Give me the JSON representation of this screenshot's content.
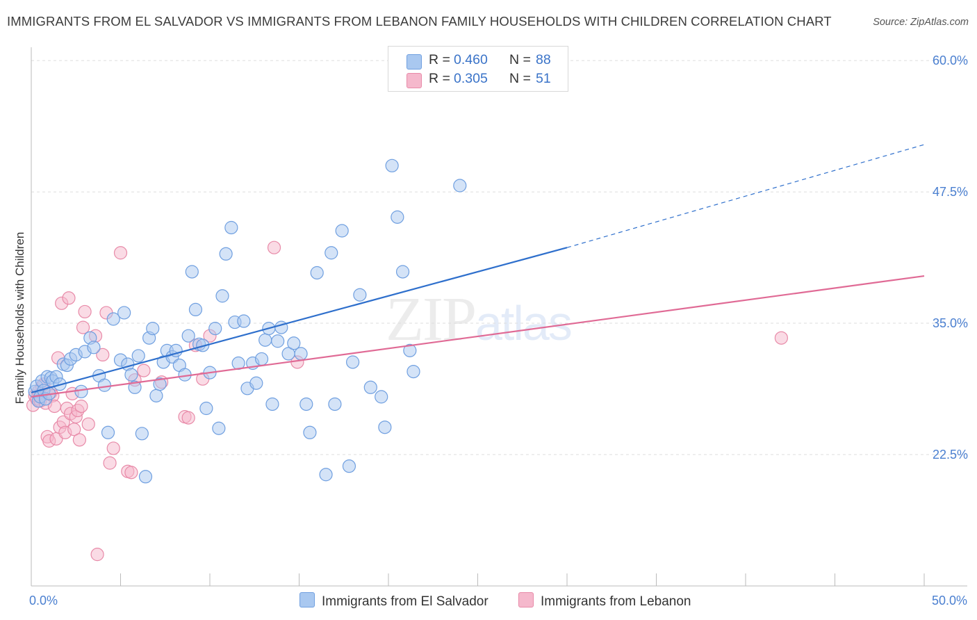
{
  "title": "IMMIGRANTS FROM EL SALVADOR VS IMMIGRANTS FROM LEBANON FAMILY HOUSEHOLDS WITH CHILDREN CORRELATION CHART",
  "source": "Source: ZipAtlas.com",
  "watermark": {
    "zip": "ZIP",
    "atlas": "atlas"
  },
  "colors": {
    "blue_fill": "#a9c8f0",
    "blue_stroke": "#6f9fe0",
    "blue_line": "#2e6fcc",
    "pink_fill": "#f5b8cc",
    "pink_stroke": "#e88aa8",
    "pink_line": "#e06a95",
    "tick_text": "#4a7fd0"
  },
  "legend": {
    "rows": [
      {
        "r_label": "R =",
        "r_value": "0.460",
        "n_label": "N =",
        "n_value": "88"
      },
      {
        "r_label": "R =",
        "r_value": "0.305",
        "n_label": "N =",
        "n_value": "51"
      }
    ]
  },
  "bottom_legend": {
    "series1": "Immigrants from El Salvador",
    "series2": "Immigrants from Lebanon"
  },
  "chart_data": {
    "type": "scatter",
    "title": "IMMIGRANTS FROM EL SALVADOR VS IMMIGRANTS FROM LEBANON FAMILY HOUSEHOLDS WITH CHILDREN CORRELATION CHART",
    "xlabel": "",
    "ylabel": "Family Households with Children",
    "xlim": [
      0,
      50
    ],
    "ylim": [
      10,
      61
    ],
    "x_tick_labels": [
      {
        "value": 0,
        "label": "0.0%"
      },
      {
        "value": 50,
        "label": "50.0%"
      }
    ],
    "y_ticks": [
      {
        "value": 22.5,
        "label": "22.5%"
      },
      {
        "value": 35.0,
        "label": "35.0%"
      },
      {
        "value": 47.5,
        "label": "47.5%"
      },
      {
        "value": 60.0,
        "label": "60.0%"
      }
    ],
    "series": [
      {
        "name": "Immigrants from El Salvador",
        "color": "blue",
        "R": 0.46,
        "N": 88,
        "trend": {
          "x0": 0,
          "y0": 28.4,
          "x1": 30,
          "y1": 42.2,
          "dashed_to_x": 50,
          "dashed_to_y": 52.0
        },
        "points": [
          [
            0.2,
            28.5
          ],
          [
            0.3,
            29.0
          ],
          [
            0.4,
            27.6
          ],
          [
            0.5,
            28.0
          ],
          [
            0.6,
            29.5
          ],
          [
            0.7,
            28.6
          ],
          [
            0.8,
            27.8
          ],
          [
            0.9,
            29.9
          ],
          [
            1.0,
            28.3
          ],
          [
            1.1,
            29.8
          ],
          [
            1.2,
            29.5
          ],
          [
            1.4,
            29.9
          ],
          [
            1.6,
            29.2
          ],
          [
            1.8,
            31.1
          ],
          [
            2.0,
            31.0
          ],
          [
            2.2,
            31.6
          ],
          [
            2.5,
            32.0
          ],
          [
            2.8,
            28.5
          ],
          [
            3.0,
            32.3
          ],
          [
            3.3,
            33.6
          ],
          [
            3.5,
            32.7
          ],
          [
            3.8,
            30.0
          ],
          [
            4.1,
            29.1
          ],
          [
            4.3,
            24.6
          ],
          [
            4.6,
            35.4
          ],
          [
            5.0,
            31.5
          ],
          [
            5.2,
            36.0
          ],
          [
            5.4,
            31.1
          ],
          [
            5.6,
            30.1
          ],
          [
            5.8,
            28.9
          ],
          [
            6.0,
            31.9
          ],
          [
            6.2,
            24.5
          ],
          [
            6.4,
            20.4
          ],
          [
            6.6,
            33.6
          ],
          [
            6.8,
            34.5
          ],
          [
            7.0,
            28.1
          ],
          [
            7.2,
            29.2
          ],
          [
            7.4,
            31.3
          ],
          [
            7.6,
            32.4
          ],
          [
            7.9,
            31.8
          ],
          [
            8.1,
            32.4
          ],
          [
            8.3,
            31.0
          ],
          [
            8.6,
            30.1
          ],
          [
            8.8,
            33.8
          ],
          [
            9.0,
            39.9
          ],
          [
            9.2,
            36.3
          ],
          [
            9.4,
            33.0
          ],
          [
            9.6,
            32.9
          ],
          [
            9.8,
            26.9
          ],
          [
            10.0,
            30.3
          ],
          [
            10.3,
            34.5
          ],
          [
            10.5,
            25.0
          ],
          [
            10.7,
            37.6
          ],
          [
            10.9,
            41.6
          ],
          [
            11.2,
            44.1
          ],
          [
            11.4,
            35.1
          ],
          [
            11.6,
            31.2
          ],
          [
            11.9,
            35.2
          ],
          [
            12.1,
            28.8
          ],
          [
            12.4,
            31.2
          ],
          [
            12.6,
            29.3
          ],
          [
            12.9,
            31.6
          ],
          [
            13.1,
            33.4
          ],
          [
            13.3,
            34.5
          ],
          [
            13.5,
            27.3
          ],
          [
            13.8,
            33.3
          ],
          [
            14.0,
            34.6
          ],
          [
            14.4,
            32.1
          ],
          [
            14.7,
            33.1
          ],
          [
            15.1,
            32.1
          ],
          [
            15.4,
            27.3
          ],
          [
            15.6,
            24.6
          ],
          [
            16.0,
            39.8
          ],
          [
            16.5,
            20.6
          ],
          [
            16.8,
            41.7
          ],
          [
            17.0,
            27.3
          ],
          [
            17.4,
            43.8
          ],
          [
            17.8,
            21.4
          ],
          [
            18.0,
            31.3
          ],
          [
            18.4,
            37.7
          ],
          [
            19.0,
            28.9
          ],
          [
            19.6,
            28.0
          ],
          [
            19.8,
            25.1
          ],
          [
            20.2,
            50.0
          ],
          [
            20.5,
            45.1
          ],
          [
            20.8,
            39.9
          ],
          [
            21.2,
            32.4
          ],
          [
            21.4,
            30.4
          ],
          [
            24.0,
            48.1
          ]
        ]
      },
      {
        "name": "Immigrants from Lebanon",
        "color": "pink",
        "R": 0.305,
        "N": 51,
        "trend": {
          "x0": 0,
          "y0": 28.0,
          "x1": 50,
          "y1": 39.5
        },
        "points": [
          [
            0.1,
            27.2
          ],
          [
            0.2,
            28.1
          ],
          [
            0.3,
            27.8
          ],
          [
            0.4,
            28.5
          ],
          [
            0.5,
            27.6
          ],
          [
            0.6,
            29.0
          ],
          [
            0.7,
            29.2
          ],
          [
            0.8,
            27.4
          ],
          [
            0.9,
            24.2
          ],
          [
            1.0,
            23.8
          ],
          [
            1.1,
            28.4
          ],
          [
            1.2,
            28.1
          ],
          [
            1.3,
            27.1
          ],
          [
            1.4,
            24.0
          ],
          [
            1.5,
            31.7
          ],
          [
            1.6,
            25.1
          ],
          [
            1.7,
            36.9
          ],
          [
            1.8,
            25.6
          ],
          [
            1.9,
            24.6
          ],
          [
            2.0,
            26.9
          ],
          [
            2.1,
            37.4
          ],
          [
            2.2,
            26.4
          ],
          [
            2.3,
            28.3
          ],
          [
            2.4,
            24.9
          ],
          [
            2.5,
            26.1
          ],
          [
            2.6,
            26.7
          ],
          [
            2.7,
            23.9
          ],
          [
            2.8,
            27.1
          ],
          [
            2.9,
            34.6
          ],
          [
            3.0,
            36.1
          ],
          [
            3.2,
            25.4
          ],
          [
            3.6,
            33.8
          ],
          [
            3.7,
            13.0
          ],
          [
            4.0,
            32.0
          ],
          [
            4.2,
            36.0
          ],
          [
            4.4,
            21.7
          ],
          [
            4.6,
            23.1
          ],
          [
            5.0,
            41.7
          ],
          [
            5.4,
            20.9
          ],
          [
            5.6,
            20.8
          ],
          [
            5.8,
            29.6
          ],
          [
            6.3,
            30.5
          ],
          [
            7.3,
            29.4
          ],
          [
            8.6,
            26.1
          ],
          [
            8.8,
            26.0
          ],
          [
            9.2,
            32.9
          ],
          [
            9.6,
            29.7
          ],
          [
            10.0,
            33.8
          ],
          [
            13.6,
            42.2
          ],
          [
            14.9,
            31.3
          ],
          [
            42.0,
            33.6
          ]
        ]
      }
    ]
  }
}
